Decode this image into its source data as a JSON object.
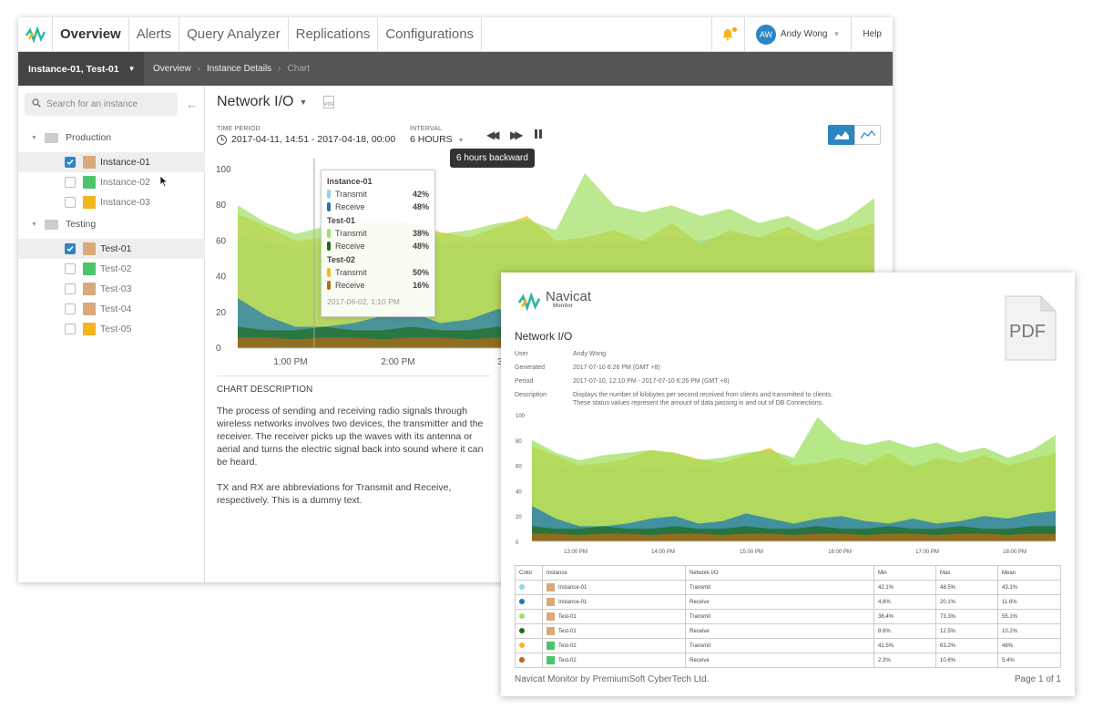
{
  "nav": {
    "tabs": [
      "Overview",
      "Alerts",
      "Query Analyzer",
      "Replications",
      "Configurations"
    ],
    "user_initials": "AW",
    "user_name": "Andy Wong",
    "help": "Help"
  },
  "breadcrumb": {
    "instance_selector": "Instance-01, Test-01",
    "items": [
      "Overview",
      "Instance Details",
      "Chart"
    ]
  },
  "sidebar": {
    "search_placeholder": "Search for an instance",
    "groups": [
      {
        "name": "Production",
        "items": [
          {
            "label": "Instance-01",
            "checked": true
          },
          {
            "label": "Instance-02",
            "checked": false
          },
          {
            "label": "Instance-03",
            "checked": false
          }
        ]
      },
      {
        "name": "Testing",
        "items": [
          {
            "label": "Test-01",
            "checked": true
          },
          {
            "label": "Test-02",
            "checked": false
          },
          {
            "label": "Test-03",
            "checked": false
          },
          {
            "label": "Test-04",
            "checked": false
          },
          {
            "label": "Test-05",
            "checked": false
          }
        ]
      }
    ]
  },
  "chart_header": {
    "title": "Network I/O",
    "pdf": "PDF",
    "time_period_label": "TIME PERIOD",
    "time_period": "2017-04-11, 14:51 - 2017-04-18, 00:00",
    "interval_label": "INTERVAL",
    "interval": "6 HOURS",
    "tooltip": "6 hours backward"
  },
  "hover": {
    "groups": [
      {
        "name": "Instance-01",
        "rows": [
          {
            "label": "Transmit",
            "value": "42%",
            "color": "#8ed4ec"
          },
          {
            "label": "Receive",
            "value": "48%",
            "color": "#1f77b4"
          }
        ]
      },
      {
        "name": "Test-01",
        "rows": [
          {
            "label": "Transmit",
            "value": "38%",
            "color": "#9fe060"
          },
          {
            "label": "Receive",
            "value": "48%",
            "color": "#1e6b1e"
          }
        ]
      },
      {
        "name": "Test-02",
        "rows": [
          {
            "label": "Transmit",
            "value": "50%",
            "color": "#f4b820"
          },
          {
            "label": "Receive",
            "value": "16%",
            "color": "#b86b14"
          }
        ]
      }
    ],
    "timestamp": "2017-06-02, 1:10 PM"
  },
  "chart_data": {
    "type": "area",
    "ylim": [
      0,
      100
    ],
    "yticks": [
      "100",
      "80",
      "60",
      "40",
      "20",
      "0"
    ],
    "xticks": [
      "1:00 PM",
      "2:00 PM",
      "3:00"
    ],
    "x": [
      0,
      1,
      2,
      3,
      4,
      5,
      6,
      7,
      8,
      9,
      10,
      11,
      12,
      13,
      14,
      15,
      16,
      17,
      18,
      19,
      20,
      21,
      22
    ],
    "series": [
      {
        "color": "#8ed4ec",
        "values": [
          62,
          60,
          55,
          58,
          60,
          58,
          60,
          58,
          60,
          59,
          60,
          58,
          60,
          59,
          60,
          62,
          60,
          64,
          62,
          62,
          60,
          61,
          62
        ]
      },
      {
        "color": "#f4b820",
        "values": [
          75,
          68,
          60,
          62,
          65,
          72,
          70,
          65,
          62,
          68,
          74,
          60,
          62,
          66,
          60,
          70,
          58,
          66,
          62,
          68,
          60,
          65,
          70
        ]
      },
      {
        "color": "#9fe060",
        "values": [
          80,
          70,
          64,
          68,
          70,
          72,
          70,
          64,
          66,
          70,
          72,
          66,
          98,
          80,
          76,
          80,
          74,
          78,
          70,
          74,
          66,
          72,
          84
        ]
      },
      {
        "color": "#1f77b4",
        "values": [
          28,
          18,
          12,
          12,
          14,
          18,
          20,
          14,
          16,
          22,
          18,
          14,
          18,
          20,
          16,
          14,
          18,
          14,
          16,
          20,
          18,
          22,
          24
        ]
      },
      {
        "color": "#1e6b1e",
        "values": [
          12,
          10,
          10,
          12,
          10,
          10,
          12,
          10,
          10,
          12,
          10,
          10,
          12,
          10,
          10,
          12,
          10,
          10,
          12,
          10,
          10,
          12,
          12
        ]
      },
      {
        "color": "#b86b14",
        "values": [
          6,
          6,
          5,
          6,
          6,
          5,
          6,
          6,
          5,
          6,
          6,
          5,
          6,
          6,
          5,
          6,
          6,
          5,
          6,
          6,
          5,
          6,
          6
        ]
      }
    ]
  },
  "description": {
    "heading": "CHART DESCRIPTION",
    "p1": "The process of sending and receiving radio signals through wireless networks involves two devices, the transmitter and the receiver. The receiver picks up the waves with its antenna or aerial and turns the electric signal back into sound where it can be heard.",
    "p2": "TX and RX are abbreviations for Transmit and Receive, respectively. This is a dummy text."
  },
  "report": {
    "brand": "Navicat",
    "brand_sub": "Monitor",
    "pdf_icon": "PDF",
    "title": "Network I/O",
    "meta": [
      {
        "k": "User",
        "v": "Andy Wong"
      },
      {
        "k": "Generated",
        "v": "2017-07-10 6:26 PM (GMT +8)"
      },
      {
        "k": "Period",
        "v": "2017-07-10, 12:10 PM - 2017-07-10 6:26 PM (GMT +8)"
      },
      {
        "k": "Description",
        "v": "Displays the number of kilobytes per second received from clients and transmitted to clients."
      },
      {
        "k": "",
        "v": "These status values represent the amount of data passing in and out of DB Connections."
      }
    ],
    "chart_yticks": [
      "100",
      "80",
      "60",
      "40",
      "20",
      "0"
    ],
    "chart_xticks": [
      "13:00 PM",
      "14:00 PM",
      "15:00 PM",
      "16:00 PM",
      "17:00 PM",
      "18:00 PM"
    ],
    "table_headers": [
      "Color",
      "Instance",
      "Network I/O",
      "Min",
      "Max",
      "Mean"
    ],
    "rows": [
      {
        "color": "#8ed4ec",
        "instance": "Instance-01",
        "io": "Transmit",
        "min": "42.1%",
        "max": "48.5%",
        "mean": "43.1%"
      },
      {
        "color": "#1f77b4",
        "instance": "Instance-01",
        "io": "Receive",
        "min": "4.8%",
        "max": "20.1%",
        "mean": "11.6%"
      },
      {
        "color": "#9fe060",
        "instance": "Test-01",
        "io": "Transmit",
        "min": "38.4%",
        "max": "73.3%",
        "mean": "55.1%"
      },
      {
        "color": "#1e6b1e",
        "instance": "Test-01",
        "io": "Receive",
        "min": "8.6%",
        "max": "12.5%",
        "mean": "10.2%"
      },
      {
        "color": "#f4b820",
        "instance": "Test-02",
        "io": "Transmit",
        "min": "41.5%",
        "max": "63.2%",
        "mean": "48%"
      },
      {
        "color": "#b86b14",
        "instance": "Test-02",
        "io": "Receive",
        "min": "2.3%",
        "max": "10.6%",
        "mean": "5.4%"
      }
    ],
    "footer": "Navicat Monitor  by PremiumSoft CyberTech Ltd.",
    "page": "Page 1 of 1"
  }
}
